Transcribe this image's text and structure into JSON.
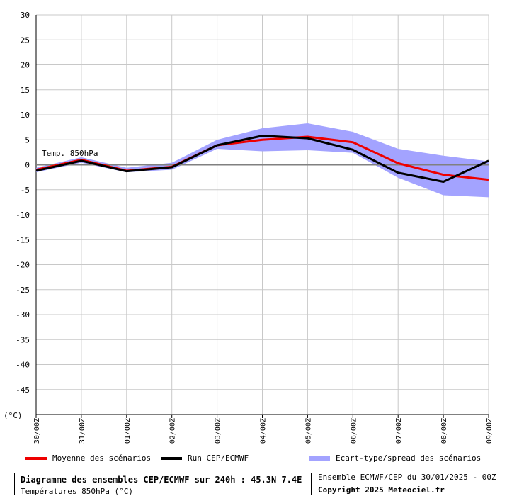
{
  "chart_data": {
    "type": "line",
    "series_label_on_chart": "Temp. 850hPa",
    "y_unit": "(°C)",
    "ylim": [
      -50,
      30
    ],
    "y_ticks": [
      30,
      25,
      20,
      15,
      10,
      5,
      0,
      -5,
      -10,
      -15,
      -20,
      -25,
      -30,
      -35,
      -40,
      -45
    ],
    "x_ticks": [
      "30/00Z",
      "31/00Z",
      "01/00Z",
      "02/00Z",
      "03/00Z",
      "04/00Z",
      "05/00Z",
      "06/00Z",
      "07/00Z",
      "08/00Z",
      "09/00Z"
    ],
    "grid": true,
    "series": [
      {
        "name": "Moyenne des scénarios",
        "color": "#ee0000",
        "values": [
          -1.0,
          1.0,
          -1.2,
          -0.4,
          3.9,
          5.0,
          5.6,
          4.5,
          0.3,
          -2.0,
          -3.0
        ]
      },
      {
        "name": "Run CEP/ECMWF",
        "color": "#000000",
        "values": [
          -1.2,
          0.8,
          -1.3,
          -0.5,
          3.9,
          5.8,
          5.3,
          3.0,
          -1.6,
          -3.4,
          0.8
        ]
      }
    ],
    "spread": {
      "name": "Ecart-type/spread des scénarios",
      "color": "#a3a3ff",
      "upper": [
        -0.6,
        1.5,
        -0.6,
        0.4,
        5.0,
        7.3,
        8.3,
        6.6,
        3.2,
        1.8,
        0.7
      ],
      "lower": [
        -1.5,
        0.4,
        -1.5,
        -1.0,
        3.2,
        2.7,
        2.9,
        2.4,
        -2.6,
        -6.1,
        -6.5
      ]
    }
  },
  "legend": {
    "mean_label": "Moyenne des scénarios",
    "run_label": "Run CEP/ECMWF",
    "spread_label": "Ecart-type/spread des scénarios"
  },
  "footer": {
    "title": "Diagramme des ensembles CEP/ECMWF sur 240h : 45.3N 7.4E",
    "subtitle": "Températures 850hPa (°C)",
    "run_info": "Ensemble ECMWF/CEP du 30/01/2025 - 00Z",
    "copyright": "Copyright 2025 Meteociel.fr"
  }
}
